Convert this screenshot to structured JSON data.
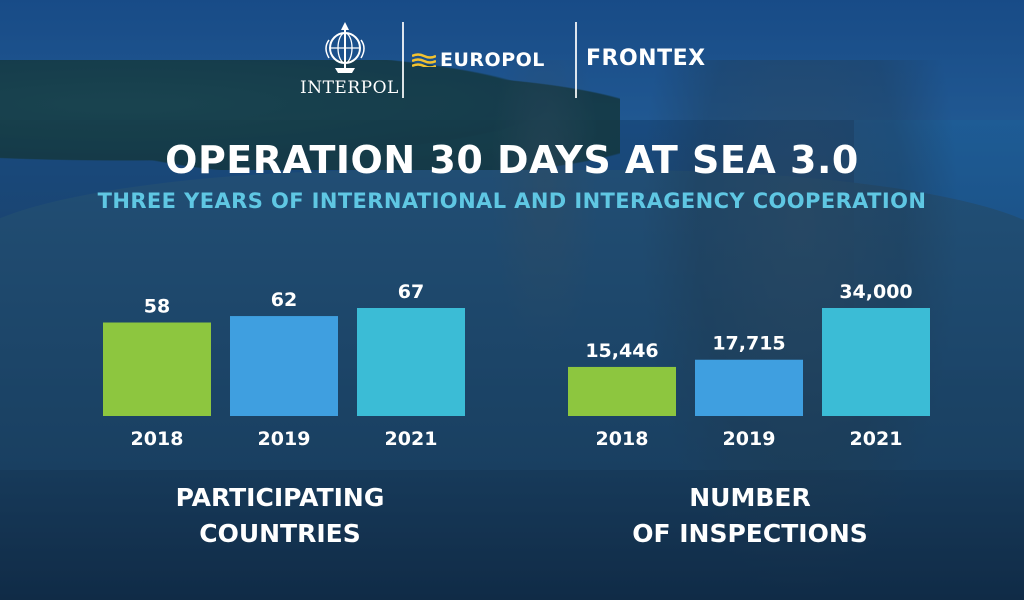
{
  "header": {
    "logos": [
      {
        "name": "interpol",
        "label": "INTERPOL",
        "icon": "interpol-globe-emblem-icon"
      },
      {
        "name": "europol",
        "label": "EUROPOL",
        "icon": "europol-wave-mark-icon"
      },
      {
        "name": "frontex",
        "label": "FRONTEX"
      }
    ],
    "title": "OPERATION 30 DAYS AT SEA 3.0",
    "subtitle": "THREE YEARS OF INTERNATIONAL AND INTERAGENCY COOPERATION"
  },
  "colors": {
    "title": "#ffffff",
    "subtitle": "#5fc7e3",
    "bar_2018": "#8dc63f",
    "bar_2019": "#3f9fe0",
    "bar_2021": "#3bbcd6"
  },
  "chart_data": [
    {
      "type": "bar",
      "title_lines": [
        "PARTICIPATING",
        "COUNTRIES"
      ],
      "categories": [
        "2018",
        "2019",
        "2021"
      ],
      "values": [
        58,
        62,
        67
      ],
      "value_labels": [
        "58",
        "62",
        "67"
      ],
      "ylim": [
        0,
        67
      ],
      "grid": false,
      "legend": "none"
    },
    {
      "type": "bar",
      "title_lines": [
        "NUMBER",
        "OF INSPECTIONS"
      ],
      "categories": [
        "2018",
        "2019",
        "2021"
      ],
      "values": [
        15446,
        17715,
        34000
      ],
      "value_labels": [
        "15,446",
        "17,715",
        "34,000"
      ],
      "ylim": [
        0,
        34000
      ],
      "grid": false,
      "legend": "none"
    }
  ]
}
